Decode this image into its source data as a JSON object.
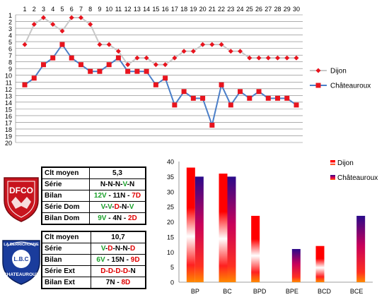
{
  "chart_data": [
    {
      "type": "line",
      "x": [
        1,
        2,
        3,
        4,
        5,
        6,
        7,
        8,
        9,
        10,
        11,
        12,
        13,
        14,
        15,
        16,
        17,
        18,
        19,
        20,
        21,
        22,
        23,
        24,
        25,
        26,
        27,
        28,
        29,
        30
      ],
      "xlim": [
        1,
        30
      ],
      "ylim": [
        1,
        20
      ],
      "y_inverted": true,
      "y_ticks": [
        1,
        2,
        3,
        4,
        5,
        6,
        7,
        8,
        9,
        10,
        11,
        12,
        13,
        14,
        15,
        16,
        17,
        18,
        19,
        20
      ],
      "grid": true,
      "legend_position": "right",
      "series": [
        {
          "name": "Dijon",
          "color": "#c8c8c8",
          "marker_color": "#e8141e",
          "marker": "diamond",
          "values": [
            5,
            2,
            1,
            2,
            3,
            1,
            1,
            2,
            5,
            5,
            6,
            8,
            7,
            7,
            8,
            8,
            7,
            6,
            6,
            5,
            5,
            5,
            6,
            6,
            7,
            7,
            7,
            7,
            7,
            7
          ]
        },
        {
          "name": "Châteauroux",
          "color": "#4a7ec8",
          "marker_color": "#e8141e",
          "marker": "square",
          "values": [
            11,
            10,
            8,
            7,
            5,
            7,
            8,
            9,
            9,
            8,
            7,
            9,
            9,
            9,
            11,
            10,
            14,
            12,
            13,
            13,
            17,
            11,
            14,
            12,
            13,
            12,
            13,
            13,
            13,
            14
          ]
        }
      ]
    },
    {
      "type": "bar",
      "categories": [
        "BP",
        "BC",
        "BPD",
        "BPE",
        "BCD",
        "BCE"
      ],
      "ylim": [
        0,
        40
      ],
      "y_ticks": [
        0,
        5,
        10,
        15,
        20,
        25,
        30,
        35,
        40
      ],
      "legend_position": "top-right",
      "series": [
        {
          "name": "Dijon",
          "values": [
            38,
            36,
            22,
            0,
            12,
            0
          ],
          "color_top": "#ff0000",
          "color_mid": "#ffffff",
          "color_bottom": "#ff8a00"
        },
        {
          "name": "Châteauroux",
          "values": [
            35,
            35,
            0,
            11,
            0,
            22
          ],
          "color_top": "#2a0a8a",
          "color_mid": "#c8005a",
          "color_bottom": "#ff8a00"
        }
      ]
    }
  ],
  "dijon_table": {
    "rows": [
      {
        "label": "Clt moyen",
        "value": [
          {
            "t": "5,3",
            "c": "k"
          }
        ]
      },
      {
        "label": "Série",
        "value": [
          {
            "t": "N-N-N-",
            "c": "k"
          },
          {
            "t": "V",
            "c": "g"
          },
          {
            "t": "-N",
            "c": "k"
          }
        ]
      },
      {
        "label": "Bilan",
        "value": [
          {
            "t": "12V",
            "c": "g"
          },
          {
            "t": " - 11N - ",
            "c": "k"
          },
          {
            "t": "7D",
            "c": "r"
          }
        ]
      },
      {
        "label": "Série Dom",
        "value": [
          {
            "t": "V",
            "c": "g"
          },
          {
            "t": "-",
            "c": "k"
          },
          {
            "t": "V",
            "c": "g"
          },
          {
            "t": "-",
            "c": "k"
          },
          {
            "t": "D",
            "c": "r"
          },
          {
            "t": "-N-",
            "c": "k"
          },
          {
            "t": "V",
            "c": "g"
          }
        ]
      },
      {
        "label": "Bilan Dom",
        "value": [
          {
            "t": "9V",
            "c": "g"
          },
          {
            "t": " - 4N - ",
            "c": "k"
          },
          {
            "t": "2D",
            "c": "r"
          }
        ]
      }
    ]
  },
  "chateauroux_table": {
    "rows": [
      {
        "label": "Clt moyen",
        "value": [
          {
            "t": "10,7",
            "c": "k"
          }
        ]
      },
      {
        "label": "Série",
        "value": [
          {
            "t": "V",
            "c": "g"
          },
          {
            "t": "-",
            "c": "k"
          },
          {
            "t": "D",
            "c": "r"
          },
          {
            "t": "-N-N-",
            "c": "k"
          },
          {
            "t": "D",
            "c": "r"
          }
        ]
      },
      {
        "label": "Bilan",
        "value": [
          {
            "t": "6V",
            "c": "g"
          },
          {
            "t": " - 15N - ",
            "c": "k"
          },
          {
            "t": "9D",
            "c": "r"
          }
        ]
      },
      {
        "label": "Série Ext",
        "value": [
          {
            "t": "D-D-D-D-",
            "c": "r"
          },
          {
            "t": "N",
            "c": "k"
          }
        ]
      },
      {
        "label": "Bilan Ext",
        "value": [
          {
            "t": "7N - ",
            "c": "k"
          },
          {
            "t": "8D",
            "c": "r"
          }
        ]
      }
    ]
  },
  "logos": {
    "dijon": {
      "text": "DFCO",
      "icon": "dijon-crest-icon",
      "color": "#c8141e"
    },
    "chateauroux": {
      "text_top": "LA BERRICHONNE",
      "text_mid": "L.B.C",
      "text_bottom": "CHATEAUROUX",
      "icon": "chateauroux-crest-icon",
      "color": "#1a3c9c"
    }
  }
}
